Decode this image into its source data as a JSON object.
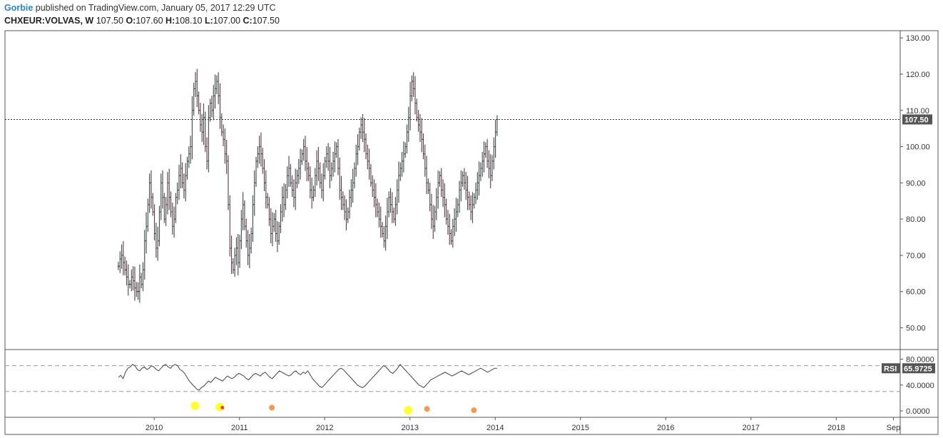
{
  "header": {
    "author": "Gorbie",
    "published_text": "published on TradingView.com, January 05, 2017 12:29 UTC",
    "symbol": "CHXEUR:VOLVAS, W",
    "last": "107.50",
    "open_label": "O:",
    "open": "107.60",
    "high_label": "H:",
    "high": "108.10",
    "low_label": "L:",
    "low": "107.00",
    "close_label": "C:",
    "close": "107.50"
  },
  "chart_data": [
    {
      "type": "ohlc",
      "title": "",
      "ylim": [
        44,
        132
      ],
      "y_ticks": [
        "130.00",
        "120.00",
        "110.00",
        "100.00",
        "90.00",
        "80.00",
        "70.00",
        "60.00",
        "50.00"
      ],
      "x_ticks": [
        "2010",
        "2011",
        "2012",
        "2013",
        "2014",
        "2015",
        "2016",
        "2017",
        "2018",
        "Sep"
      ],
      "x_tick_years": [
        2010,
        2011,
        2012,
        2013,
        2014,
        2015,
        2016,
        2017,
        2018,
        2018.67
      ],
      "xlim": [
        2008.25,
        2018.75
      ],
      "last_price": 107.5,
      "last_price_label": "107.50",
      "colors": {
        "bar": "#444444",
        "up_bg": "#e8f0f0",
        "down_bg": "#fbe6ef",
        "price_line": "#333333",
        "badge": "#555555"
      },
      "series_closes": {
        "start": 2009.58,
        "step": 0.01923,
        "values": [
          67,
          69,
          70,
          68,
          66,
          64,
          62,
          62,
          64,
          63,
          61,
          60,
          60,
          64,
          62,
          66,
          74,
          78,
          84,
          90,
          86,
          82,
          76,
          72,
          74,
          82,
          90,
          86,
          80,
          84,
          90,
          86,
          82,
          78,
          80,
          86,
          88,
          92,
          94,
          90,
          88,
          92,
          96,
          98,
          100,
          110,
          116,
          118,
          114,
          110,
          106,
          104,
          108,
          100,
          96,
          108,
          112,
          110,
          114,
          116,
          118,
          114,
          108,
          104,
          102,
          98,
          96,
          84,
          72,
          68,
          66,
          70,
          72,
          68,
          74,
          80,
          84,
          78,
          74,
          70,
          72,
          76,
          84,
          90,
          96,
          98,
          100,
          98,
          94,
          90,
          86,
          84,
          80,
          76,
          78,
          80,
          76,
          74,
          78,
          82,
          86,
          84,
          88,
          92,
          94,
          90,
          88,
          86,
          90,
          92,
          94,
          96,
          98,
          100,
          96,
          94,
          92,
          88,
          86,
          88,
          92,
          96,
          94,
          90,
          88,
          92,
          96,
          98,
          96,
          92,
          94,
          96,
          98,
          100,
          94,
          88,
          86,
          84,
          82,
          80,
          82,
          86,
          88,
          90,
          94,
          98,
          100,
          104,
          106,
          104,
          102,
          98,
          96,
          94,
          90,
          88,
          86,
          84,
          82,
          80,
          78,
          76,
          74,
          78,
          82,
          86,
          84,
          82,
          80,
          84,
          88,
          92,
          94,
          96,
          98,
          100,
          104,
          108,
          114,
          118,
          116,
          112,
          108,
          106,
          104,
          102,
          98,
          94,
          90,
          88,
          84,
          80,
          78,
          82,
          86,
          90,
          92,
          88,
          86,
          84,
          80,
          78,
          76,
          74,
          78,
          80,
          82,
          84,
          88,
          90,
          92,
          90,
          88,
          86,
          84,
          82,
          84,
          86,
          88,
          90,
          92,
          94,
          96,
          98,
          100,
          96,
          94,
          92,
          96,
          100,
          104,
          107.5
        ]
      }
    },
    {
      "type": "line",
      "title": "",
      "series_name": "RSI",
      "badge_label": "RSI",
      "value_label": "65.9725",
      "last_value": 65.9725,
      "ylim": [
        -10,
        95
      ],
      "y_ticks": [
        "80.0000",
        "40.0000",
        "0.0000"
      ],
      "band_levels": [
        70,
        30
      ],
      "x": {
        "start": 2009.58,
        "step": 0.01923
      },
      "values": [
        52,
        55,
        50,
        60,
        66,
        68,
        72,
        70,
        64,
        62,
        66,
        68,
        64,
        66,
        70,
        68,
        64,
        62,
        66,
        70,
        72,
        68,
        66,
        70,
        72,
        70,
        64,
        62,
        58,
        52,
        46,
        42,
        38,
        34,
        32,
        36,
        38,
        42,
        46,
        44,
        48,
        52,
        50,
        48,
        46,
        50,
        54,
        52,
        50,
        52,
        56,
        58,
        56,
        54,
        50,
        48,
        52,
        56,
        58,
        56,
        54,
        58,
        60,
        56,
        52,
        50,
        54,
        58,
        62,
        60,
        58,
        56,
        54,
        56,
        60,
        62,
        58,
        56,
        60,
        58,
        62,
        56,
        50,
        46,
        42,
        38,
        36,
        40,
        44,
        48,
        52,
        56,
        60,
        64,
        66,
        64,
        60,
        56,
        52,
        48,
        44,
        40,
        38,
        36,
        38,
        42,
        46,
        50,
        54,
        58,
        62,
        66,
        70,
        68,
        64,
        60,
        58,
        62,
        66,
        72,
        68,
        64,
        60,
        56,
        52,
        48,
        44,
        40,
        38,
        36,
        40,
        44,
        48,
        50,
        52,
        54,
        56,
        58,
        60,
        58,
        56,
        54,
        56,
        58,
        60,
        62,
        60,
        58,
        56,
        58,
        60,
        62,
        64,
        66,
        64,
        62,
        60,
        62,
        64,
        66,
        65.9725
      ],
      "markers": [
        {
          "x": 2010.48,
          "y": 8,
          "color": "#ffff33",
          "kind": "large"
        },
        {
          "x": 2010.77,
          "y": 6,
          "color": "#ffff33",
          "kind": "large"
        },
        {
          "x": 2010.8,
          "y": 5,
          "color": "#f44336",
          "kind": "small"
        },
        {
          "x": 2011.38,
          "y": 5,
          "color": "#f39a52",
          "kind": "medium"
        },
        {
          "x": 2012.98,
          "y": 1,
          "color": "#ffff33",
          "kind": "large"
        },
        {
          "x": 2013.2,
          "y": 3,
          "color": "#f39a52",
          "kind": "medium"
        },
        {
          "x": 2013.75,
          "y": 1,
          "color": "#f39a52",
          "kind": "medium"
        }
      ]
    }
  ]
}
